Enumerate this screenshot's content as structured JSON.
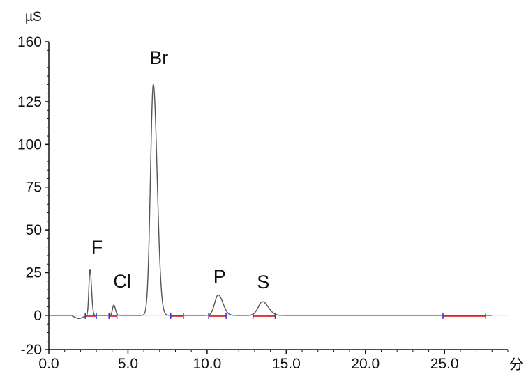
{
  "chart_data": {
    "type": "line",
    "y_unit": "µS",
    "x_unit": "分",
    "xlim": [
      0,
      29
    ],
    "ylim": [
      -20,
      160
    ],
    "x_ticks": [
      "0.0",
      "5.0",
      "10.0",
      "15.0",
      "20.0",
      "25.0"
    ],
    "y_ticks": [
      "160",
      "125",
      "100",
      "75",
      "50",
      "25",
      "0",
      "-20"
    ],
    "peaks": [
      {
        "label": "F",
        "retention_time": 2.6,
        "height": 27
      },
      {
        "label": "Cl",
        "retention_time": 4.1,
        "height": 6
      },
      {
        "label": "Br",
        "retention_time": 6.6,
        "height": 135
      },
      {
        "label": "P",
        "retention_time": 10.7,
        "height": 12
      },
      {
        "label": "S",
        "retention_time": 13.5,
        "height": 8
      }
    ],
    "baseline_segments": [
      [
        2.3,
        3.0
      ],
      [
        3.8,
        4.3
      ],
      [
        7.7,
        8.5
      ],
      [
        10.1,
        11.2
      ],
      [
        12.9,
        14.3
      ],
      [
        24.9,
        27.6
      ]
    ],
    "colors": {
      "trace": "#555555",
      "baseline": "#e03030",
      "marker": "#3030c8",
      "axis": "#111111"
    }
  }
}
